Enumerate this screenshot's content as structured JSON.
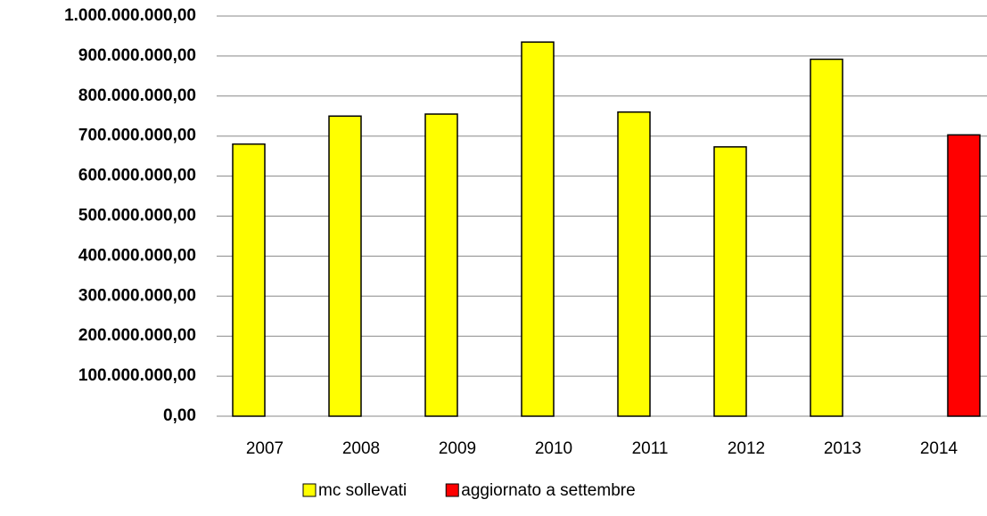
{
  "chart_data": {
    "type": "bar",
    "categories": [
      "2007",
      "2008",
      "2009",
      "2010",
      "2011",
      "2012",
      "2013",
      "2014"
    ],
    "series": [
      {
        "name": "mc sollevati",
        "color": "#ffff00",
        "values": [
          680000000,
          750000000,
          755000000,
          935000000,
          760000000,
          673000000,
          892000000,
          null
        ]
      },
      {
        "name": "aggiornato a settembre",
        "color": "#ff0000",
        "values": [
          null,
          null,
          null,
          null,
          null,
          null,
          null,
          703000000
        ]
      }
    ],
    "ylim": [
      0,
      1000000000
    ],
    "yticks": [
      {
        "value": 0,
        "label": "0,00"
      },
      {
        "value": 100000000,
        "label": "100.000.000,00"
      },
      {
        "value": 200000000,
        "label": "200.000.000,00"
      },
      {
        "value": 300000000,
        "label": "300.000.000,00"
      },
      {
        "value": 400000000,
        "label": "400.000.000,00"
      },
      {
        "value": 500000000,
        "label": "500.000.000,00"
      },
      {
        "value": 600000000,
        "label": "600.000.000,00"
      },
      {
        "value": 700000000,
        "label": "700.000.000,00"
      },
      {
        "value": 800000000,
        "label": "800.000.000,00"
      },
      {
        "value": 900000000,
        "label": "900.000.000,00"
      },
      {
        "value": 1000000000,
        "label": "1.000.000.000,00"
      }
    ],
    "grid": true,
    "legend": "bottom"
  }
}
